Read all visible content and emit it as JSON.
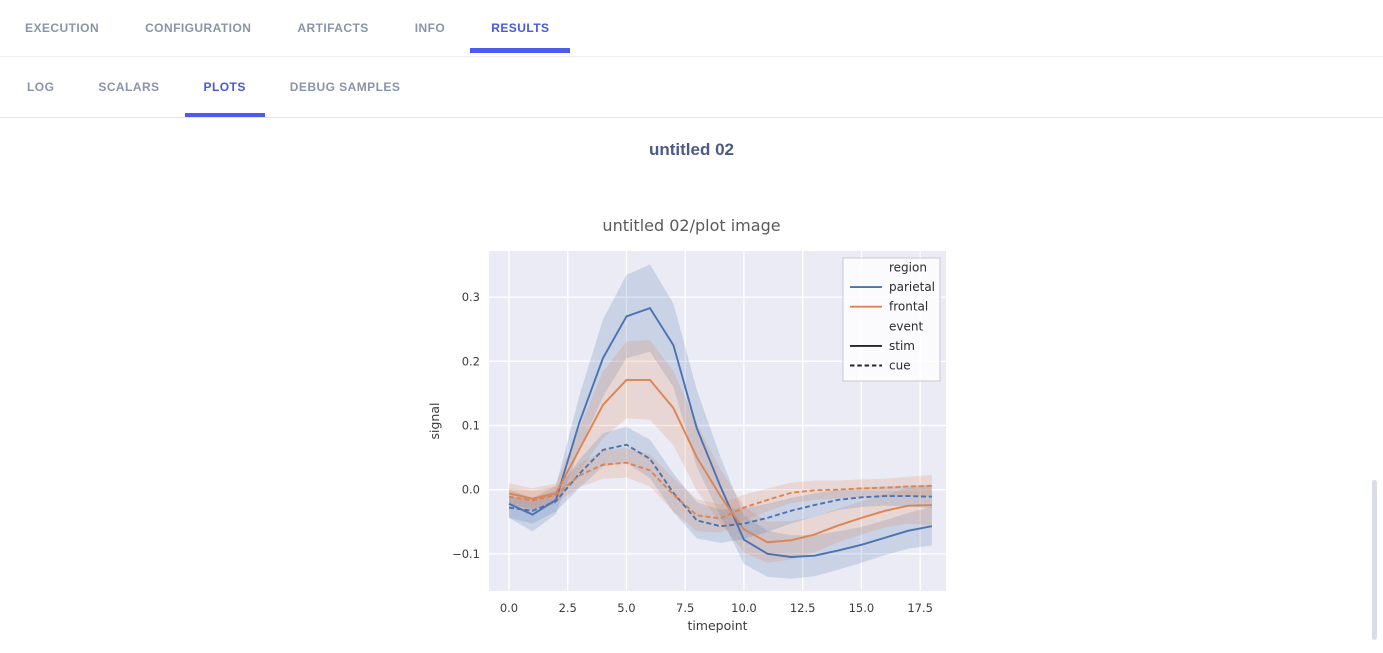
{
  "nav": {
    "primary": [
      {
        "label": "EXECUTION",
        "active": false
      },
      {
        "label": "CONFIGURATION",
        "active": false
      },
      {
        "label": "ARTIFACTS",
        "active": false
      },
      {
        "label": "INFO",
        "active": false
      },
      {
        "label": "RESULTS",
        "active": true
      }
    ],
    "secondary": [
      {
        "label": "LOG",
        "active": false
      },
      {
        "label": "SCALARS",
        "active": false
      },
      {
        "label": "PLOTS",
        "active": true
      },
      {
        "label": "DEBUG SAMPLES",
        "active": false
      }
    ]
  },
  "accent_color": "#4c5af0",
  "page_title": "untitled 02",
  "chart_data": {
    "type": "line",
    "title": "untitled 02/plot image",
    "xlabel": "timepoint",
    "ylabel": "signal",
    "xlim": [
      -0.85,
      18.6
    ],
    "ylim": [
      -0.158,
      0.372
    ],
    "xticks": [
      0.0,
      2.5,
      5.0,
      7.5,
      10.0,
      12.5,
      15.0,
      17.5
    ],
    "yticks": [
      -0.1,
      0.0,
      0.1,
      0.2,
      0.3
    ],
    "grid": true,
    "background": "#eaebf4",
    "grid_color": "#ffffff",
    "x": [
      0,
      1,
      2,
      3,
      4,
      5,
      6,
      7,
      8,
      9,
      10,
      11,
      12,
      13,
      14,
      15,
      16,
      17,
      18
    ],
    "series": [
      {
        "name": "parietal-stim",
        "region": "parietal",
        "event": "stim",
        "color": "#4c72b0",
        "dash": "solid",
        "values": [
          -0.022,
          -0.039,
          -0.016,
          0.105,
          0.205,
          0.27,
          0.283,
          0.225,
          0.095,
          0.005,
          -0.078,
          -0.1,
          -0.105,
          -0.103,
          -0.095,
          -0.086,
          -0.075,
          -0.064,
          -0.057
        ],
        "ci": [
          0.022,
          0.026,
          0.022,
          0.042,
          0.06,
          0.065,
          0.068,
          0.065,
          0.06,
          0.046,
          0.038,
          0.036,
          0.034,
          0.032,
          0.03,
          0.028,
          0.027,
          0.028,
          0.03
        ]
      },
      {
        "name": "frontal-stim",
        "region": "frontal",
        "event": "stim",
        "color": "#dd8452",
        "dash": "solid",
        "values": [
          -0.006,
          -0.014,
          -0.006,
          0.063,
          0.132,
          0.171,
          0.171,
          0.127,
          0.05,
          -0.01,
          -0.062,
          -0.082,
          -0.079,
          -0.07,
          -0.056,
          -0.044,
          -0.033,
          -0.025,
          -0.024
        ],
        "ci": [
          0.016,
          0.016,
          0.016,
          0.034,
          0.052,
          0.06,
          0.062,
          0.058,
          0.052,
          0.042,
          0.036,
          0.032,
          0.03,
          0.028,
          0.026,
          0.026,
          0.026,
          0.028,
          0.032
        ]
      },
      {
        "name": "parietal-cue",
        "region": "parietal",
        "event": "cue",
        "color": "#4c72b0",
        "dash": "dashed",
        "values": [
          -0.028,
          -0.033,
          -0.018,
          0.025,
          0.062,
          0.07,
          0.048,
          -0.005,
          -0.048,
          -0.057,
          -0.053,
          -0.044,
          -0.033,
          -0.024,
          -0.016,
          -0.012,
          -0.01,
          -0.01,
          -0.011
        ],
        "ci": [
          0.016,
          0.02,
          0.016,
          0.022,
          0.026,
          0.028,
          0.03,
          0.03,
          0.028,
          0.026,
          0.024,
          0.022,
          0.02,
          0.018,
          0.016,
          0.015,
          0.015,
          0.016,
          0.018
        ]
      },
      {
        "name": "frontal-cue",
        "region": "frontal",
        "event": "cue",
        "color": "#dd8452",
        "dash": "dashed",
        "values": [
          -0.011,
          -0.017,
          -0.008,
          0.022,
          0.039,
          0.042,
          0.03,
          -0.008,
          -0.04,
          -0.045,
          -0.028,
          -0.016,
          -0.005,
          -0.001,
          0.0,
          0.002,
          0.003,
          0.005,
          0.006
        ],
        "ci": [
          0.013,
          0.015,
          0.013,
          0.018,
          0.022,
          0.023,
          0.025,
          0.026,
          0.025,
          0.022,
          0.02,
          0.018,
          0.016,
          0.015,
          0.014,
          0.014,
          0.014,
          0.015,
          0.017
        ]
      }
    ],
    "legend": {
      "position": "upper right",
      "entries": [
        {
          "label": "region",
          "type": "title"
        },
        {
          "label": "parietal",
          "color": "#4c72b0",
          "dash": "solid"
        },
        {
          "label": "frontal",
          "color": "#dd8452",
          "dash": "solid"
        },
        {
          "label": "event",
          "type": "title"
        },
        {
          "label": "stim",
          "color": "#262626",
          "dash": "solid"
        },
        {
          "label": "cue",
          "color": "#262626",
          "dash": "dashed"
        }
      ]
    }
  }
}
